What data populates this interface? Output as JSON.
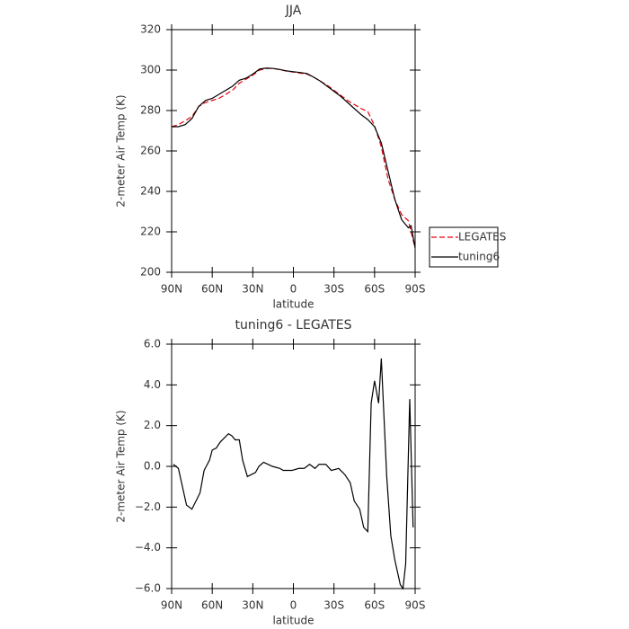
{
  "chart_data": [
    {
      "type": "line",
      "title": "JJA",
      "x_label": "latitude",
      "y_label": "2-meter Air Temp (K)",
      "x": [
        90,
        85,
        80,
        75,
        70,
        65,
        60,
        55,
        50,
        45,
        40,
        35,
        30,
        25,
        20,
        15,
        10,
        5,
        0,
        -5,
        -10,
        -15,
        -20,
        -25,
        -30,
        -35,
        -40,
        -45,
        -50,
        -55,
        -60,
        -65,
        -70,
        -75,
        -80,
        -85,
        -87,
        -90
      ],
      "series": [
        {
          "name": "LEGATES",
          "color": "#e8000b",
          "linestyle": "dashed",
          "values": [
            272,
            273,
            275,
            277,
            282,
            284,
            285,
            286,
            288,
            290,
            293.5,
            295.5,
            297.5,
            300,
            300.8,
            300.8,
            300.2,
            299.5,
            299,
            298.5,
            298,
            296.5,
            294.5,
            292.5,
            290,
            287.5,
            285,
            283,
            281,
            279.5,
            272.5,
            262,
            246,
            236,
            228.5,
            225.5,
            220,
            212
          ]
        },
        {
          "name": "tuning6",
          "color": "#000000",
          "linestyle": "solid",
          "values": [
            272,
            272,
            273,
            276,
            282,
            285,
            286,
            288,
            290,
            292,
            295,
            296,
            298,
            300.5,
            301,
            300.8,
            300.3,
            299.6,
            299.2,
            298.8,
            298.3,
            296.5,
            294.5,
            292,
            289.5,
            287,
            284,
            281,
            278,
            275.5,
            272,
            264,
            250,
            236,
            226,
            222,
            223,
            212
          ]
        }
      ],
      "xlim": [
        90,
        -90
      ],
      "xticks": [
        {
          "value": 90,
          "label": "90N"
        },
        {
          "value": 60,
          "label": "60N"
        },
        {
          "value": 30,
          "label": "30N"
        },
        0,
        {
          "value": -30,
          "label": "30S"
        },
        {
          "value": -60,
          "label": "60S"
        },
        {
          "value": -90,
          "label": "90S"
        }
      ],
      "ylim": [
        200,
        320
      ],
      "yticks": [
        200,
        220,
        240,
        260,
        280,
        300,
        320
      ],
      "legend": "right"
    },
    {
      "type": "line",
      "title": "tuning6 - LEGATES",
      "x_label": "latitude",
      "y_label": "2-meter Air Temp (K)",
      "x": [
        88.7,
        85,
        79,
        75,
        69,
        66,
        62,
        60,
        57,
        54,
        48,
        45.5,
        43,
        40,
        37.5,
        34,
        28,
        25.5,
        22,
        15.5,
        10,
        7.5,
        1,
        -4,
        -8,
        -12,
        -16,
        -19,
        -24,
        -28,
        -33.5,
        -38,
        -42,
        -45,
        -49,
        -52,
        -55,
        -57.5,
        -60,
        -63,
        -65,
        -69,
        -72,
        -75,
        -79,
        -81,
        -83,
        -86,
        -88.5
      ],
      "color": "#000000",
      "values": [
        0.1,
        -0.1,
        -1.9,
        -2.1,
        -1.3,
        -0.2,
        0.3,
        0.8,
        0.9,
        1.2,
        1.6,
        1.5,
        1.3,
        1.3,
        0.3,
        -0.5,
        -0.3,
        0.0,
        0.2,
        0.0,
        -0.1,
        -0.2,
        -0.2,
        -0.1,
        -0.1,
        0.1,
        -0.1,
        0.1,
        0.1,
        -0.2,
        -0.1,
        -0.4,
        -0.8,
        -1.7,
        -2.1,
        -3.0,
        -3.2,
        3.1,
        4.2,
        3.1,
        5.3,
        -0.5,
        -3.4,
        -4.6,
        -5.8,
        -6.0,
        -4.8,
        3.3,
        -3.0
      ],
      "xlim": [
        90,
        -90
      ],
      "xticks": [
        {
          "value": 90,
          "label": "90N"
        },
        {
          "value": 60,
          "label": "60N"
        },
        {
          "value": 30,
          "label": "30N"
        },
        0,
        {
          "value": -30,
          "label": "30S"
        },
        {
          "value": -60,
          "label": "60S"
        },
        {
          "value": -90,
          "label": "90S"
        }
      ],
      "ylim": [
        -6,
        6
      ],
      "yticks": [
        {
          "value": -6,
          "label": "−6.0"
        },
        {
          "value": -4,
          "label": "−4.0"
        },
        {
          "value": -2,
          "label": "−2.0"
        },
        {
          "value": 0,
          "label": "0.0"
        },
        {
          "value": 2,
          "label": "2.0"
        },
        {
          "value": 4,
          "label": "4.0"
        },
        {
          "value": 6,
          "label": "6.0"
        }
      ]
    }
  ]
}
